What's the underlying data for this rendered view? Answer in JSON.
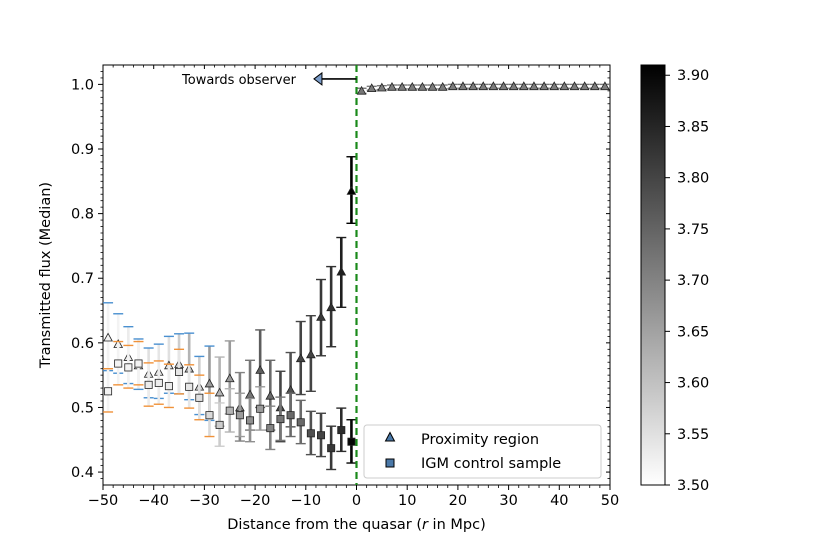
{
  "chart_data": {
    "type": "scatter",
    "xlabel": "Distance from the quasar (",
    "xlabel_var": "r",
    "xlabel_suffix": " in Mpc)",
    "ylabel": "Transmitted flux (Median)",
    "xlim": [
      -50,
      50
    ],
    "ylim": [
      0.38,
      1.03
    ],
    "xticks": [
      -50,
      -40,
      -30,
      -20,
      -10,
      0,
      10,
      20,
      30,
      40,
      50
    ],
    "xtick_labels": [
      "−50",
      "−40",
      "−30",
      "−20",
      "−10",
      "0",
      "10",
      "20",
      "30",
      "40",
      "50"
    ],
    "yticks": [
      0.4,
      0.5,
      0.6,
      0.7,
      0.8,
      0.9,
      1.0
    ],
    "ytick_labels": [
      "0.4",
      "0.5",
      "0.6",
      "0.7",
      "0.8",
      "0.9",
      "1.0"
    ],
    "vline": {
      "x": 0,
      "color": "#1a8a1a",
      "style": "dashed"
    },
    "annotation": {
      "text": "Towards observer",
      "arrow_from_x": 0,
      "arrow_to_x": -8,
      "y": 1.01
    },
    "legend": {
      "location": "lower-right",
      "entries": [
        {
          "label": "Proximity region",
          "marker": "triangle"
        },
        {
          "label": "IGM control sample",
          "marker": "square"
        }
      ]
    },
    "colorbar": {
      "min": 3.5,
      "max": 3.91,
      "ticks": [
        3.5,
        3.55,
        3.6,
        3.65,
        3.7,
        3.75,
        3.8,
        3.85,
        3.9
      ],
      "tick_labels": [
        "3.50",
        "3.55",
        "3.60",
        "3.65",
        "3.70",
        "3.75",
        "3.80",
        "3.85",
        "3.90"
      ]
    },
    "series": [
      {
        "name": "Proximity region",
        "marker": "triangle",
        "points": [
          {
            "x": -49,
            "y": 0.608,
            "ylo": 0.557,
            "yhi": 0.662,
            "z": 3.52
          },
          {
            "x": -47,
            "y": 0.598,
            "ylo": 0.553,
            "yhi": 0.645,
            "z": 3.52
          },
          {
            "x": -45,
            "y": 0.578,
            "ylo": 0.537,
            "yhi": 0.625,
            "z": 3.53
          },
          {
            "x": -43,
            "y": 0.565,
            "ylo": 0.528,
            "yhi": 0.606,
            "z": 3.53
          },
          {
            "x": -41,
            "y": 0.552,
            "ylo": 0.515,
            "yhi": 0.592,
            "z": 3.55
          },
          {
            "x": -39,
            "y": 0.555,
            "ylo": 0.514,
            "yhi": 0.598,
            "z": 3.54
          },
          {
            "x": -37,
            "y": 0.565,
            "ylo": 0.522,
            "yhi": 0.61,
            "z": 3.55
          },
          {
            "x": -35,
            "y": 0.567,
            "ylo": 0.521,
            "yhi": 0.614,
            "z": 3.58
          },
          {
            "x": -33,
            "y": 0.56,
            "ylo": 0.512,
            "yhi": 0.615,
            "z": 3.62
          },
          {
            "x": -31,
            "y": 0.532,
            "ylo": 0.489,
            "yhi": 0.579,
            "z": 3.58
          },
          {
            "x": -29,
            "y": 0.537,
            "ylo": 0.48,
            "yhi": 0.595,
            "z": 3.66
          },
          {
            "x": -27,
            "y": 0.523,
            "ylo": 0.471,
            "yhi": 0.578,
            "z": 3.62
          },
          {
            "x": -25,
            "y": 0.545,
            "ylo": 0.49,
            "yhi": 0.603,
            "z": 3.66
          },
          {
            "x": -23,
            "y": 0.5,
            "ylo": 0.448,
            "yhi": 0.554,
            "z": 3.7
          },
          {
            "x": -21,
            "y": 0.52,
            "ylo": 0.465,
            "yhi": 0.573,
            "z": 3.72
          },
          {
            "x": -19,
            "y": 0.558,
            "ylo": 0.5,
            "yhi": 0.62,
            "z": 3.76
          },
          {
            "x": -17,
            "y": 0.518,
            "ylo": 0.465,
            "yhi": 0.573,
            "z": 3.74
          },
          {
            "x": -15,
            "y": 0.5,
            "ylo": 0.447,
            "yhi": 0.556,
            "z": 3.8
          },
          {
            "x": -13,
            "y": 0.527,
            "ylo": 0.47,
            "yhi": 0.585,
            "z": 3.78
          },
          {
            "x": -11,
            "y": 0.576,
            "ylo": 0.52,
            "yhi": 0.633,
            "z": 3.8
          },
          {
            "x": -9,
            "y": 0.582,
            "ylo": 0.525,
            "yhi": 0.642,
            "z": 3.8
          },
          {
            "x": -7,
            "y": 0.64,
            "ylo": 0.58,
            "yhi": 0.698,
            "z": 3.82
          },
          {
            "x": -5,
            "y": 0.655,
            "ylo": 0.594,
            "yhi": 0.718,
            "z": 3.83
          },
          {
            "x": -3,
            "y": 0.71,
            "ylo": 0.655,
            "yhi": 0.763,
            "z": 3.86
          },
          {
            "x": -1,
            "y": 0.835,
            "ylo": 0.785,
            "yhi": 0.888,
            "z": 3.91
          },
          {
            "x": 1,
            "y": 0.99,
            "ylo": 0.986,
            "yhi": 0.994,
            "z": 3.72
          },
          {
            "x": 3,
            "y": 0.994,
            "ylo": 0.991,
            "yhi": 0.997,
            "z": 3.71
          },
          {
            "x": 5,
            "y": 0.995,
            "ylo": 0.992,
            "yhi": 0.998,
            "z": 3.71
          },
          {
            "x": 7,
            "y": 0.996,
            "ylo": 0.993,
            "yhi": 0.999,
            "z": 3.71
          },
          {
            "x": 9,
            "y": 0.996,
            "ylo": 0.993,
            "yhi": 0.999,
            "z": 3.71
          },
          {
            "x": 11,
            "y": 0.996,
            "ylo": 0.993,
            "yhi": 0.999,
            "z": 3.71
          },
          {
            "x": 13,
            "y": 0.996,
            "ylo": 0.993,
            "yhi": 0.999,
            "z": 3.71
          },
          {
            "x": 15,
            "y": 0.996,
            "ylo": 0.993,
            "yhi": 0.999,
            "z": 3.71
          },
          {
            "x": 17,
            "y": 0.996,
            "ylo": 0.993,
            "yhi": 0.999,
            "z": 3.71
          },
          {
            "x": 19,
            "y": 0.997,
            "ylo": 0.994,
            "yhi": 1.0,
            "z": 3.71
          },
          {
            "x": 21,
            "y": 0.997,
            "ylo": 0.994,
            "yhi": 1.0,
            "z": 3.71
          },
          {
            "x": 23,
            "y": 0.997,
            "ylo": 0.994,
            "yhi": 1.0,
            "z": 3.71
          },
          {
            "x": 25,
            "y": 0.997,
            "ylo": 0.994,
            "yhi": 1.0,
            "z": 3.71
          },
          {
            "x": 27,
            "y": 0.997,
            "ylo": 0.994,
            "yhi": 1.0,
            "z": 3.71
          },
          {
            "x": 29,
            "y": 0.997,
            "ylo": 0.994,
            "yhi": 1.0,
            "z": 3.71
          },
          {
            "x": 31,
            "y": 0.997,
            "ylo": 0.994,
            "yhi": 1.0,
            "z": 3.71
          },
          {
            "x": 33,
            "y": 0.997,
            "ylo": 0.994,
            "yhi": 1.0,
            "z": 3.71
          },
          {
            "x": 35,
            "y": 0.997,
            "ylo": 0.994,
            "yhi": 1.0,
            "z": 3.71
          },
          {
            "x": 37,
            "y": 0.997,
            "ylo": 0.994,
            "yhi": 1.0,
            "z": 3.71
          },
          {
            "x": 39,
            "y": 0.997,
            "ylo": 0.994,
            "yhi": 1.0,
            "z": 3.71
          },
          {
            "x": 41,
            "y": 0.997,
            "ylo": 0.994,
            "yhi": 1.0,
            "z": 3.71
          },
          {
            "x": 43,
            "y": 0.997,
            "ylo": 0.994,
            "yhi": 1.0,
            "z": 3.71
          },
          {
            "x": 45,
            "y": 0.997,
            "ylo": 0.994,
            "yhi": 1.0,
            "z": 3.71
          },
          {
            "x": 47,
            "y": 0.997,
            "ylo": 0.994,
            "yhi": 1.0,
            "z": 3.71
          },
          {
            "x": 49,
            "y": 0.997,
            "ylo": 0.994,
            "yhi": 1.0,
            "z": 3.71
          }
        ]
      },
      {
        "name": "IGM control sample",
        "marker": "square",
        "points": [
          {
            "x": -49,
            "y": 0.525,
            "ylo": 0.493,
            "yhi": 0.56,
            "z": 3.52
          },
          {
            "x": -47,
            "y": 0.568,
            "ylo": 0.535,
            "yhi": 0.602,
            "z": 3.52
          },
          {
            "x": -45,
            "y": 0.562,
            "ylo": 0.53,
            "yhi": 0.596,
            "z": 3.52
          },
          {
            "x": -43,
            "y": 0.568,
            "ylo": 0.535,
            "yhi": 0.602,
            "z": 3.52
          },
          {
            "x": -41,
            "y": 0.535,
            "ylo": 0.502,
            "yhi": 0.569,
            "z": 3.53
          },
          {
            "x": -39,
            "y": 0.538,
            "ylo": 0.505,
            "yhi": 0.572,
            "z": 3.53
          },
          {
            "x": -37,
            "y": 0.533,
            "ylo": 0.5,
            "yhi": 0.567,
            "z": 3.53
          },
          {
            "x": -35,
            "y": 0.555,
            "ylo": 0.521,
            "yhi": 0.59,
            "z": 3.54
          },
          {
            "x": -33,
            "y": 0.532,
            "ylo": 0.499,
            "yhi": 0.566,
            "z": 3.54
          },
          {
            "x": -31,
            "y": 0.515,
            "ylo": 0.481,
            "yhi": 0.55,
            "z": 3.55
          },
          {
            "x": -29,
            "y": 0.488,
            "ylo": 0.455,
            "yhi": 0.522,
            "z": 3.56
          },
          {
            "x": -27,
            "y": 0.473,
            "ylo": 0.44,
            "yhi": 0.507,
            "z": 3.58
          },
          {
            "x": -25,
            "y": 0.495,
            "ylo": 0.462,
            "yhi": 0.529,
            "z": 3.62
          },
          {
            "x": -23,
            "y": 0.488,
            "ylo": 0.455,
            "yhi": 0.522,
            "z": 3.66
          },
          {
            "x": -21,
            "y": 0.48,
            "ylo": 0.447,
            "yhi": 0.514,
            "z": 3.68
          },
          {
            "x": -19,
            "y": 0.498,
            "ylo": 0.465,
            "yhi": 0.532,
            "z": 3.66
          },
          {
            "x": -17,
            "y": 0.468,
            "ylo": 0.435,
            "yhi": 0.502,
            "z": 3.7
          },
          {
            "x": -15,
            "y": 0.482,
            "ylo": 0.449,
            "yhi": 0.516,
            "z": 3.72
          },
          {
            "x": -13,
            "y": 0.488,
            "ylo": 0.455,
            "yhi": 0.522,
            "z": 3.74
          },
          {
            "x": -11,
            "y": 0.477,
            "ylo": 0.444,
            "yhi": 0.511,
            "z": 3.74
          },
          {
            "x": -9,
            "y": 0.46,
            "ylo": 0.427,
            "yhi": 0.494,
            "z": 3.78
          },
          {
            "x": -7,
            "y": 0.457,
            "ylo": 0.424,
            "yhi": 0.491,
            "z": 3.8
          },
          {
            "x": -5,
            "y": 0.437,
            "ylo": 0.404,
            "yhi": 0.471,
            "z": 3.82
          },
          {
            "x": -3,
            "y": 0.465,
            "ylo": 0.432,
            "yhi": 0.499,
            "z": 3.84
          },
          {
            "x": -1,
            "y": 0.447,
            "ylo": 0.414,
            "yhi": 0.481,
            "z": 3.9
          }
        ]
      }
    ]
  }
}
